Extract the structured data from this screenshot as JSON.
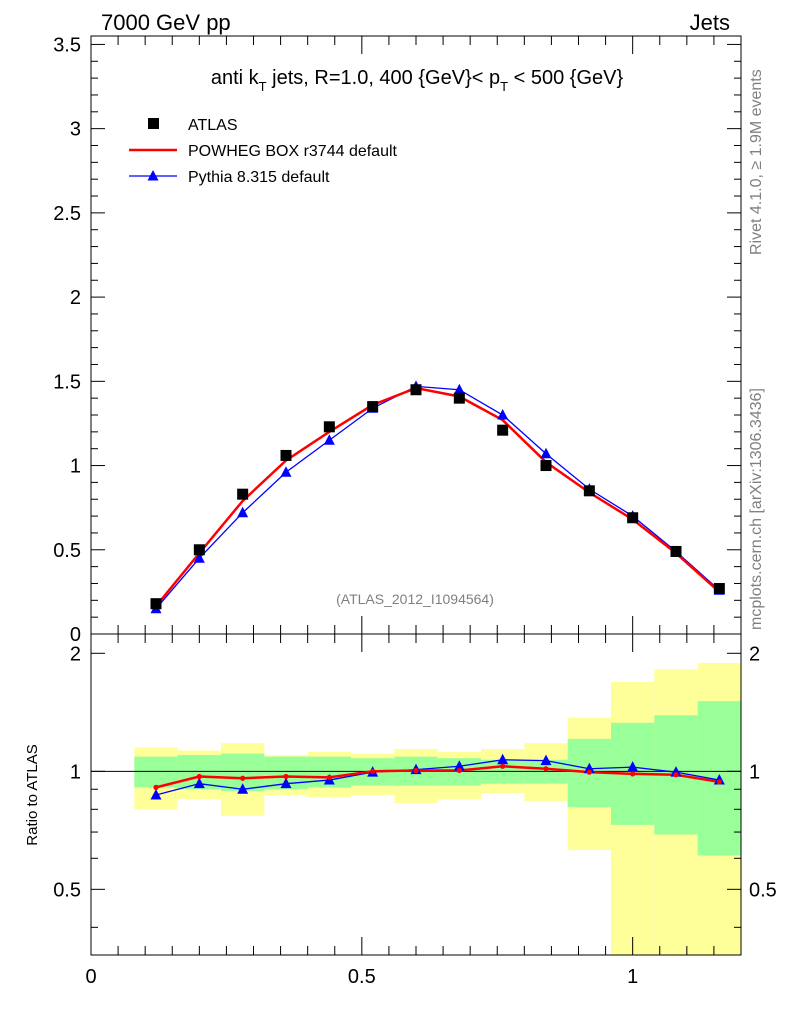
{
  "header": {
    "left": "7000 GeV pp",
    "right": "Jets"
  },
  "side_labels": {
    "rivet": "Rivet 4.1.0, ≥ 1.9M events",
    "mcplots": "mcplots.cern.ch [arXiv:1306.3436]"
  },
  "chart_data": [
    {
      "type": "scatter",
      "panel": "main",
      "title": {
        "prefix": "anti k",
        "sub1": "T",
        "middle": " jets, R=1.0,  400 {GeV}< p",
        "sub2": "T",
        "suffix": " < 500 {GeV}"
      },
      "watermark": "(ATLAS_2012_I1094564)",
      "xlim": [
        0,
        1.2
      ],
      "ylim": [
        0,
        3.55
      ],
      "yticks": [
        0,
        0.5,
        1,
        1.5,
        2,
        2.5,
        3,
        3.5
      ],
      "ytick_labels": [
        "0",
        "0.5",
        "1",
        "1.5",
        "2",
        "2.5",
        "3",
        "3.5"
      ],
      "x": [
        0.12,
        0.2,
        0.28,
        0.36,
        0.44,
        0.52,
        0.6,
        0.68,
        0.76,
        0.84,
        0.92,
        1.0,
        1.08,
        1.16
      ],
      "legend": [
        "ATLAS",
        "POWHEG BOX r3744 default",
        "Pythia 8.315 default"
      ],
      "series": [
        {
          "name": "ATLAS",
          "color": "#000000",
          "marker": "square",
          "values": [
            0.18,
            0.5,
            0.83,
            1.06,
            1.23,
            1.35,
            1.45,
            1.4,
            1.21,
            1.0,
            0.85,
            0.69,
            0.49,
            0.27
          ]
        },
        {
          "name": "POWHEG BOX r3744 default",
          "color": "#ff0000",
          "marker": "line",
          "values": [
            0.165,
            0.48,
            0.79,
            1.03,
            1.2,
            1.36,
            1.46,
            1.41,
            1.27,
            1.02,
            0.84,
            0.68,
            0.48,
            0.25
          ]
        },
        {
          "name": "Pythia 8.315 default",
          "color": "#0000ff",
          "marker": "triangle",
          "values": [
            0.15,
            0.45,
            0.72,
            0.96,
            1.15,
            1.34,
            1.47,
            1.45,
            1.3,
            1.07,
            0.86,
            0.7,
            0.49,
            0.26
          ]
        }
      ]
    },
    {
      "type": "scatter",
      "panel": "ratio",
      "ylabel": "Ratio to ATLAS",
      "xlim": [
        0,
        1.2
      ],
      "ylim": [
        0.34,
        2.24
      ],
      "yticks": [
        0.5,
        1,
        2
      ],
      "ytick_labels": [
        "0.5",
        "1",
        "2"
      ],
      "xticks": [
        0,
        0.5,
        1
      ],
      "xtick_labels": [
        "0",
        "0.5",
        "1"
      ],
      "x": [
        0.12,
        0.2,
        0.28,
        0.36,
        0.44,
        0.52,
        0.6,
        0.68,
        0.76,
        0.84,
        0.92,
        1.0,
        1.08,
        1.16
      ],
      "bin_edges": [
        0.08,
        0.16,
        0.24,
        0.32,
        0.4,
        0.48,
        0.56,
        0.64,
        0.72,
        0.8,
        0.88,
        0.96,
        1.04,
        1.12,
        1.2
      ],
      "band_stat": {
        "color": "#99ff99",
        "low": [
          0.91,
          0.9,
          0.89,
          0.9,
          0.91,
          0.92,
          0.92,
          0.92,
          0.93,
          0.93,
          0.81,
          0.73,
          0.69,
          0.61
        ],
        "high": [
          1.09,
          1.1,
          1.11,
          1.09,
          1.09,
          1.08,
          1.09,
          1.08,
          1.07,
          1.07,
          1.21,
          1.33,
          1.39,
          1.51
        ]
      },
      "band_total": {
        "color": "#ffff99",
        "low": [
          0.8,
          0.85,
          0.77,
          0.87,
          0.86,
          0.87,
          0.83,
          0.85,
          0.88,
          0.84,
          0.63,
          0.34,
          0.34,
          0.34
        ],
        "high": [
          1.15,
          1.13,
          1.18,
          1.1,
          1.12,
          1.11,
          1.14,
          1.12,
          1.14,
          1.18,
          1.37,
          1.69,
          1.82,
          1.89
        ]
      },
      "series": [
        {
          "name": "POWHEG BOX r3744 default",
          "color": "#ff0000",
          "marker": "dot",
          "values": [
            0.91,
            0.97,
            0.96,
            0.97,
            0.965,
            1.0,
            1.005,
            1.005,
            1.03,
            1.015,
            0.995,
            0.985,
            0.98,
            0.94
          ]
        },
        {
          "name": "Pythia 8.315 default",
          "color": "#0000ff",
          "marker": "triangle",
          "values": [
            0.87,
            0.93,
            0.9,
            0.93,
            0.95,
            0.995,
            1.01,
            1.03,
            1.07,
            1.065,
            1.015,
            1.025,
            0.995,
            0.95
          ]
        }
      ]
    }
  ]
}
